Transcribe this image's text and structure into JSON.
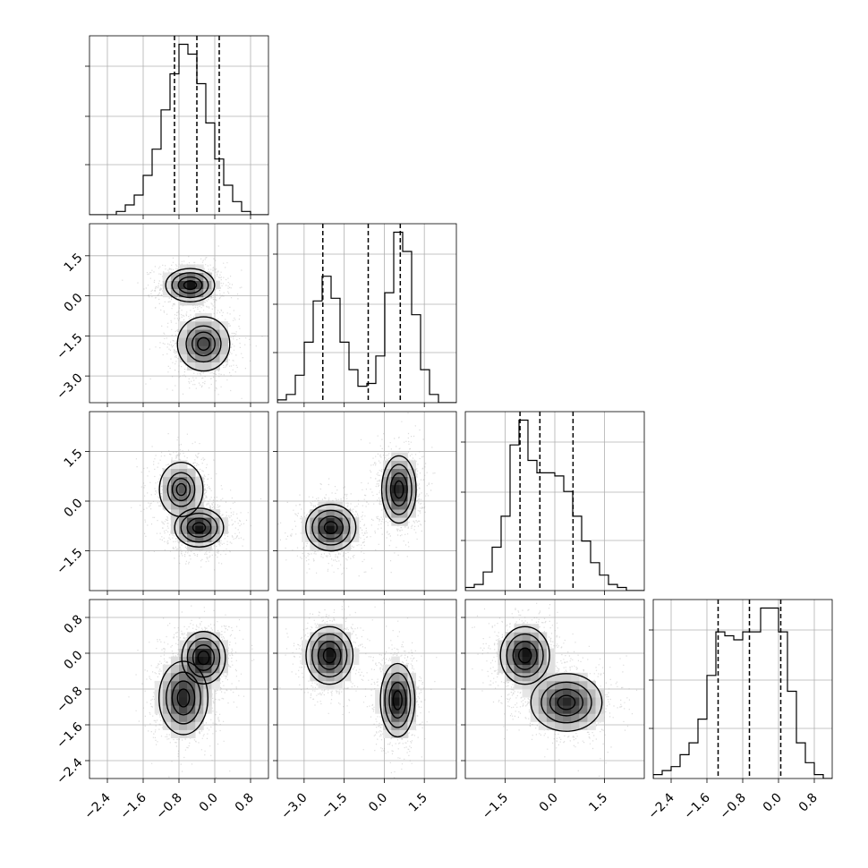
{
  "chart_data": {
    "type": "corner",
    "parameters": [
      "",
      "",
      "",
      ""
    ],
    "grid": true,
    "axis_ranges": [
      [
        -2.8,
        1.2
      ],
      [
        -4.0,
        2.7
      ],
      [
        -2.7,
        2.7
      ],
      [
        -2.8,
        1.2
      ]
    ],
    "ticks": {
      "x": [
        [
          "−2.4",
          "−1.6",
          "−0.8",
          "0.0",
          "0.8"
        ],
        [
          "−3.0",
          "−1.5",
          "0.0",
          "1.5"
        ],
        [
          "−1.5",
          "0.0",
          "1.5"
        ],
        [
          "−2.4",
          "−1.6",
          "−0.8",
          "0.0",
          "0.8"
        ]
      ],
      "y": [
        [],
        [
          "1.5",
          "0.0",
          "−1.5",
          "−3.0"
        ],
        [
          "1.5",
          "0.0",
          "−1.5"
        ],
        [
          "0.8",
          "0.0",
          "−0.8",
          "−1.6",
          "−2.4"
        ]
      ]
    },
    "quantiles": [
      [
        -0.9,
        -0.4,
        0.1
      ],
      [
        -2.3,
        -0.6,
        0.6
      ],
      [
        -1.05,
        -0.45,
        0.55
      ],
      [
        -1.35,
        -0.65,
        0.05
      ]
    ],
    "histograms": [
      {
        "edges_start": -2.8,
        "bin_width": 0.2,
        "counts": [
          0,
          0,
          0,
          1,
          3,
          6,
          12,
          20,
          32,
          43,
          52,
          49,
          40,
          28,
          17,
          9,
          4,
          1,
          0,
          0
        ]
      },
      {
        "edges_start": -4.0,
        "bin_width": 0.335,
        "counts": [
          1,
          3,
          10,
          22,
          37,
          46,
          38,
          22,
          12,
          6,
          7,
          17,
          40,
          62,
          55,
          32,
          12,
          3,
          0,
          0
        ]
      },
      {
        "edges_start": -2.7,
        "bin_width": 0.27,
        "counts": [
          1,
          2,
          6,
          14,
          24,
          47,
          55,
          42,
          38,
          38,
          37,
          32,
          24,
          16,
          9,
          5,
          2,
          1,
          0,
          0
        ]
      },
      {
        "edges_start": -2.8,
        "bin_width": 0.2,
        "counts": [
          1,
          2,
          3,
          6,
          9,
          15,
          26,
          37,
          36,
          35,
          37,
          37,
          43,
          43,
          37,
          22,
          9,
          4,
          1,
          0
        ]
      }
    ],
    "densities": [
      {
        "row": 1,
        "col": 0,
        "clusters": [
          {
            "mx": -0.55,
            "my": 0.4,
            "sx": 0.28,
            "sy": 0.32,
            "r": 0,
            "w": 1.0
          },
          {
            "mx": -0.25,
            "my": -1.8,
            "sx": 0.3,
            "sy": 0.52,
            "r": 0,
            "w": 0.8
          }
        ]
      },
      {
        "row": 2,
        "col": 0,
        "clusters": [
          {
            "mx": -0.35,
            "my": -0.8,
            "sx": 0.28,
            "sy": 0.3,
            "r": 0,
            "w": 1.0
          },
          {
            "mx": -0.75,
            "my": 0.35,
            "sx": 0.25,
            "sy": 0.42,
            "r": 0,
            "w": 0.7
          }
        ]
      },
      {
        "row": 2,
        "col": 1,
        "clusters": [
          {
            "mx": -2.0,
            "my": -0.8,
            "sx": 0.48,
            "sy": 0.36,
            "r": 0,
            "w": 1.0
          },
          {
            "mx": 0.55,
            "my": 0.35,
            "sx": 0.33,
            "sy": 0.52,
            "r": 0,
            "w": 1.0
          }
        ]
      },
      {
        "row": 3,
        "col": 0,
        "clusters": [
          {
            "mx": -0.25,
            "my": -0.1,
            "sx": 0.25,
            "sy": 0.3,
            "r": 0,
            "w": 1.0
          },
          {
            "mx": -0.7,
            "my": -1.0,
            "sx": 0.28,
            "sy": 0.42,
            "r": 0,
            "w": 0.9
          }
        ]
      },
      {
        "row": 3,
        "col": 1,
        "clusters": [
          {
            "mx": -2.05,
            "my": -0.05,
            "sx": 0.45,
            "sy": 0.33,
            "r": 0,
            "w": 1.0
          },
          {
            "mx": 0.5,
            "my": -1.05,
            "sx": 0.33,
            "sy": 0.42,
            "r": 0,
            "w": 1.0
          }
        ]
      },
      {
        "row": 3,
        "col": 2,
        "clusters": [
          {
            "mx": -0.9,
            "my": -0.05,
            "sx": 0.38,
            "sy": 0.33,
            "r": 0,
            "w": 1.0
          },
          {
            "mx": 0.35,
            "my": -1.1,
            "sx": 0.55,
            "sy": 0.33,
            "r": 0,
            "w": 0.9
          }
        ]
      }
    ]
  }
}
